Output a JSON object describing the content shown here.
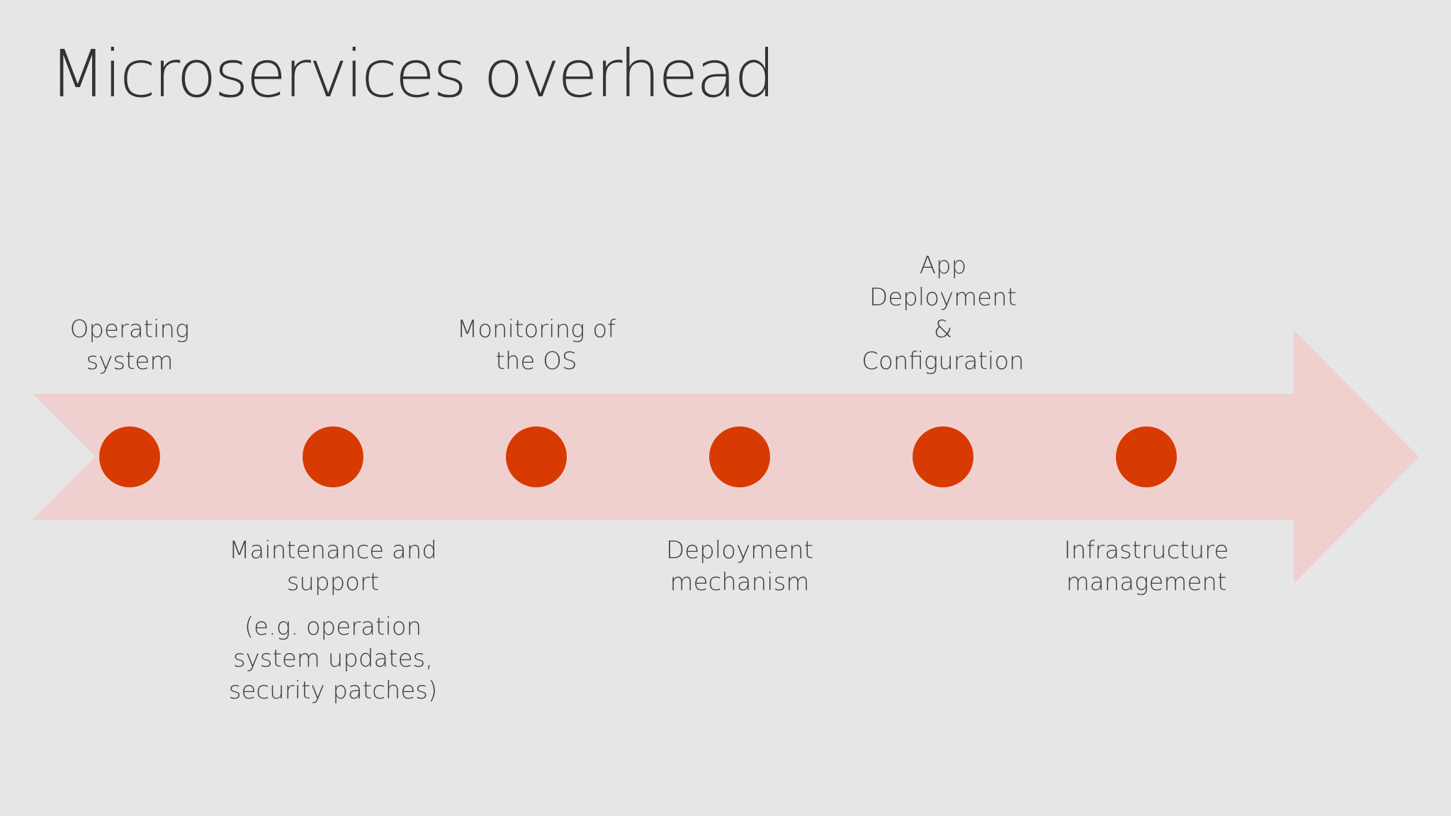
{
  "slide": {
    "title": "Microservices overhead"
  },
  "colors": {
    "background": "#e6e6e6",
    "arrow": "#f0cfcf",
    "dot": "#d83b01",
    "dot_outline": "#f3d2d2",
    "text": "#3f3f3f"
  },
  "timeline": {
    "items": [
      {
        "position": "above",
        "lines": [
          "Operating",
          "system"
        ]
      },
      {
        "position": "below",
        "lines": [
          "Maintenance and",
          "support"
        ],
        "note_lines": [
          "(e.g. operation",
          "system updates,",
          "security patches)"
        ]
      },
      {
        "position": "above",
        "lines": [
          "Monitoring of",
          "the OS"
        ]
      },
      {
        "position": "below",
        "lines": [
          "Deployment",
          "mechanism"
        ]
      },
      {
        "position": "above",
        "lines": [
          "App",
          "Deployment",
          "&",
          "Configuration"
        ]
      },
      {
        "position": "below",
        "lines": [
          "Infrastructure",
          "management"
        ]
      }
    ]
  }
}
